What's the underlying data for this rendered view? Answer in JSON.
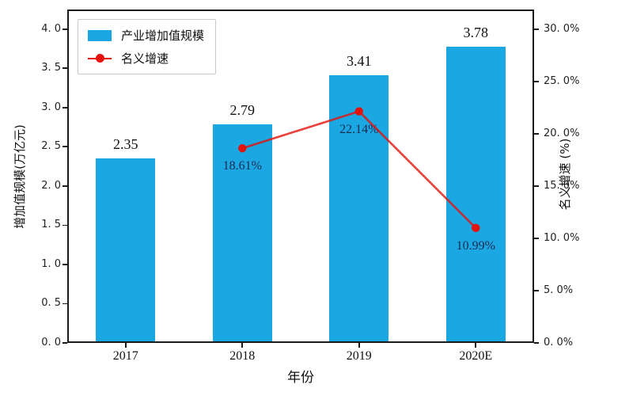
{
  "chart_data": {
    "type": "bar",
    "combo": "bar+line",
    "categories": [
      "2017",
      "2018",
      "2019",
      "2020E"
    ],
    "series": [
      {
        "name": "产业增加值规模",
        "type": "bar",
        "axis": "left",
        "values": [
          2.35,
          2.79,
          3.41,
          3.78
        ],
        "labels": [
          "2.35",
          "2.79",
          "3.41",
          "3.78"
        ],
        "color": "#1aa7e2"
      },
      {
        "name": "名义增速",
        "type": "line",
        "axis": "right",
        "values": [
          null,
          18.61,
          22.14,
          10.99
        ],
        "labels": [
          null,
          "18.61%",
          "22.14%",
          "10.99%"
        ],
        "color": "#e3120d",
        "marker": "circle"
      }
    ],
    "title": "",
    "xlabel": "年份",
    "ylabel_left": "增加值规模(万亿元)",
    "ylabel_right": "名义增速 (%)",
    "ylim_left": [
      0,
      4.25
    ],
    "ylim_right": [
      0,
      31.875
    ],
    "grid": false,
    "legend_position": "upper left"
  },
  "axes": {
    "left": {
      "title": "增加值规模(万亿元)",
      "ticks": [
        {
          "value": 0.0,
          "label": "0. 0"
        },
        {
          "value": 0.5,
          "label": "0. 5"
        },
        {
          "value": 1.0,
          "label": "1. 0"
        },
        {
          "value": 1.5,
          "label": "1. 5"
        },
        {
          "value": 2.0,
          "label": "2. 0"
        },
        {
          "value": 2.5,
          "label": "2. 5"
        },
        {
          "value": 3.0,
          "label": "3. 0"
        },
        {
          "value": 3.5,
          "label": "3. 5"
        },
        {
          "value": 4.0,
          "label": "4. 0"
        }
      ]
    },
    "right": {
      "title": "名义增速 (%)",
      "ticks": [
        {
          "value": 0,
          "label": "0. 0%"
        },
        {
          "value": 5,
          "label": "5. 0%"
        },
        {
          "value": 10,
          "label": "10. 0%"
        },
        {
          "value": 15,
          "label": "15. 0%"
        },
        {
          "value": 20,
          "label": "20. 0%"
        },
        {
          "value": 25,
          "label": "25. 0%"
        },
        {
          "value": 30,
          "label": "30. 0%"
        }
      ]
    },
    "x": {
      "title": "年份",
      "ticks": [
        "2017",
        "2018",
        "2019",
        "2020E"
      ]
    }
  },
  "legend": {
    "items": [
      {
        "label": "产业增加值规模",
        "type": "bar",
        "color": "#1aa7e2"
      },
      {
        "label": "名义增速",
        "type": "line",
        "color": "#e3120d"
      }
    ]
  },
  "colors": {
    "bar": "#1aa7e2",
    "line": "#e3120d",
    "frame": "#1a1a1a",
    "point_label": "#1d2b52",
    "background": "#ffffff"
  }
}
